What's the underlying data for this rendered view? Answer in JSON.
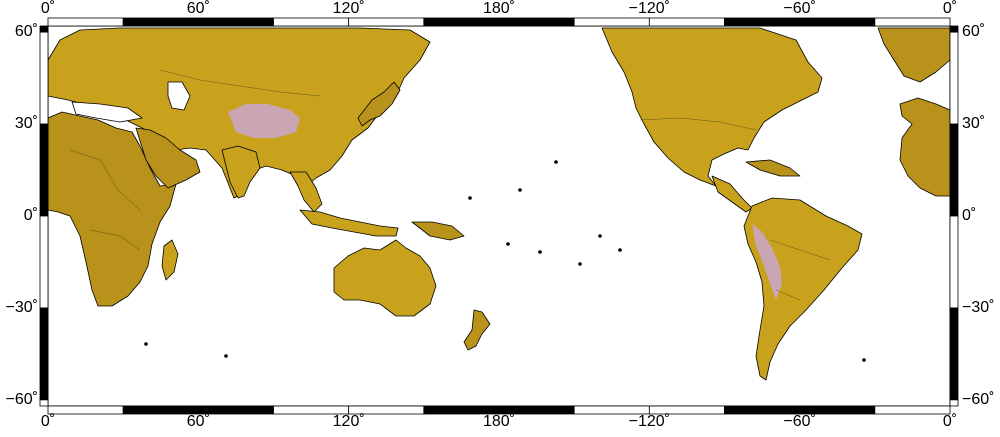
{
  "map": {
    "projection": "cylindrical-equidistant",
    "center_longitude": 180,
    "lon_range": [
      0,
      360
    ],
    "lat_range": [
      -62,
      62
    ],
    "frame_style": "alternating black-white fancy frame",
    "graticule": false,
    "colors": {
      "ocean": "#ffffff",
      "land": "#c8a21c",
      "land_shade": "#b8921a",
      "high_plateau": "#c9a6b2",
      "coastline": "#000000",
      "borders": "#3a3520",
      "frame_dark": "#000000",
      "frame_light": "#ffffff"
    },
    "x_ticks": [
      {
        "lon": 0,
        "label": "0˚"
      },
      {
        "lon": 60,
        "label": "60˚"
      },
      {
        "lon": 120,
        "label": "120˚"
      },
      {
        "lon": 180,
        "label": "180˚"
      },
      {
        "lon": 240,
        "label": "−120˚"
      },
      {
        "lon": 300,
        "label": "−60˚"
      },
      {
        "lon": 360,
        "label": "0˚"
      }
    ],
    "y_ticks": [
      {
        "lat": 60,
        "label": "60˚"
      },
      {
        "lat": 30,
        "label": "30˚"
      },
      {
        "lat": 0,
        "label": "0˚"
      },
      {
        "lat": -30,
        "label": "−30˚"
      },
      {
        "lat": -60,
        "label": "−60˚"
      }
    ],
    "features": [
      {
        "name": "Africa"
      },
      {
        "name": "Eurasia"
      },
      {
        "name": "Arabian Peninsula"
      },
      {
        "name": "India"
      },
      {
        "name": "Tibetan Plateau"
      },
      {
        "name": "Southeast Asia"
      },
      {
        "name": "Japan"
      },
      {
        "name": "Indonesia"
      },
      {
        "name": "New Guinea"
      },
      {
        "name": "Australia"
      },
      {
        "name": "New Zealand"
      },
      {
        "name": "North America"
      },
      {
        "name": "Greenland"
      },
      {
        "name": "Central America"
      },
      {
        "name": "Caribbean"
      },
      {
        "name": "South America"
      },
      {
        "name": "Andes"
      },
      {
        "name": "Madagascar"
      },
      {
        "name": "Iberia and West Africa"
      },
      {
        "name": "Caspian Sea"
      },
      {
        "name": "Mediterranean Sea"
      }
    ]
  }
}
